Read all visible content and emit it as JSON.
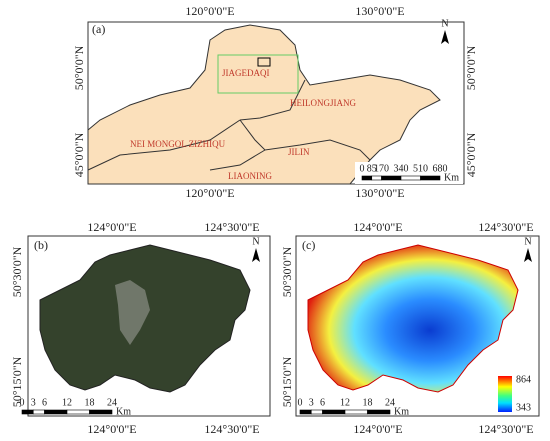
{
  "panel_a": {
    "label": "(a)",
    "lon_labels": [
      "120°0'0\"E",
      "130°0'0\"E"
    ],
    "lat_labels": [
      "50°0'0\"N",
      "45°0'0\"N"
    ],
    "regions": [
      "JIAGEDAQI",
      "HEILONGJIANG",
      "NEI MONGOL ZIZHIQU",
      "JILIN",
      "LIAONING"
    ],
    "scale": [
      0,
      85,
      170,
      340,
      510,
      680
    ],
    "scale_unit": "Km",
    "north": "N"
  },
  "panel_b": {
    "label": "(b)",
    "lon_labels": [
      "124°0'0\"E",
      "124°30'0\"E"
    ],
    "lat_labels": [
      "50°30'0\"N",
      "50°15'0\"N"
    ],
    "scale": [
      0,
      3,
      6,
      12,
      18,
      24
    ],
    "scale_unit": "Km",
    "north": "N"
  },
  "panel_c": {
    "label": "(c)",
    "lon_labels": [
      "124°0'0\"E",
      "124°30'0\"E"
    ],
    "lat_labels": [
      "50°30'0\"N",
      "50°15'0\"N"
    ],
    "scale": [
      0,
      3,
      6,
      12,
      18,
      24
    ],
    "scale_unit": "Km",
    "north": "N",
    "legend": [
      864,
      343
    ]
  }
}
